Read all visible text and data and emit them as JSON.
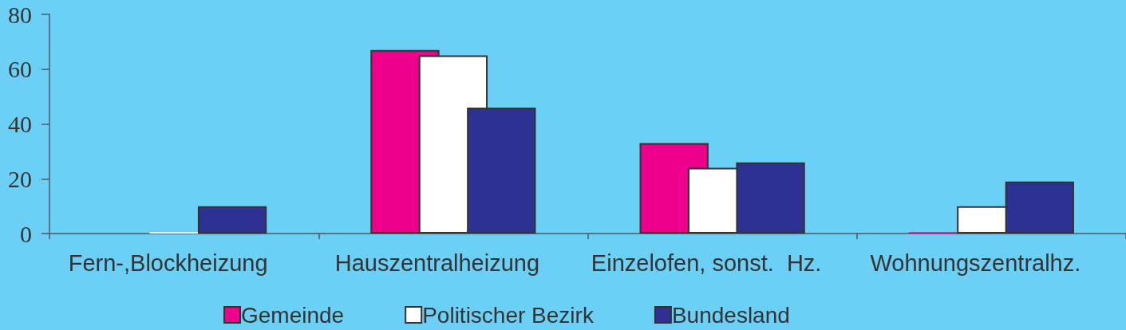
{
  "chart_data": {
    "type": "bar",
    "categories": [
      "Fern-,Blockheizung",
      "Hauszentralheizung",
      "Einzelofen, sonst.  Hz.",
      "Wohnungszentralhz."
    ],
    "series": [
      {
        "name": "Gemeinde",
        "color": "#ec008c",
        "values": [
          null,
          67,
          33,
          0.5
        ]
      },
      {
        "name": "Politischer Bezirk",
        "color": "#ffffff",
        "values": [
          0.5,
          65,
          24,
          10
        ]
      },
      {
        "name": "Bundesland",
        "color": "#2e3192",
        "values": [
          10,
          46,
          26,
          19
        ]
      }
    ],
    "ylim": [
      0,
      80
    ],
    "yticks": [
      0,
      20,
      40,
      60,
      80
    ],
    "grid": false,
    "legend": "bottom"
  }
}
